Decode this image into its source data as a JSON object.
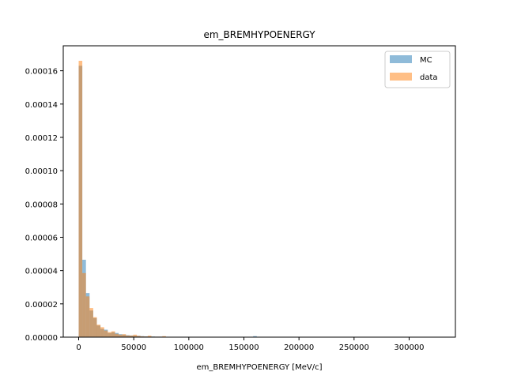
{
  "chart_data": {
    "type": "bar",
    "title": "em_BREMHYPOENERGY",
    "xlabel": "em_BREMHYPOENERGY [MeV/c]",
    "ylabel": "",
    "xlim": [
      -14000,
      342000
    ],
    "ylim": [
      0,
      0.000175
    ],
    "x_ticks": [
      0,
      50000,
      100000,
      150000,
      200000,
      250000,
      300000
    ],
    "x_tick_labels": [
      "0",
      "50000",
      "100000",
      "150000",
      "200000",
      "250000",
      "300000"
    ],
    "y_ticks": [
      0,
      2e-05,
      4e-05,
      6e-05,
      8e-05,
      0.0001,
      0.00012,
      0.00014,
      0.00016
    ],
    "y_tick_labels": [
      "0.00000",
      "0.00002",
      "0.00004",
      "0.00006",
      "0.00008",
      "0.00010",
      "0.00012",
      "0.00014",
      "0.00016"
    ],
    "grid": false,
    "legend_position": "top-right",
    "bin_edges_start": 0,
    "bin_width": 3300,
    "series": [
      {
        "name": "MC",
        "color": "#1f77b4",
        "opacity": 0.5,
        "values": [
          0.000163,
          4.65e-05,
          2.65e-05,
          1.6e-05,
          1.15e-05,
          7e-06,
          5e-06,
          4.5e-06,
          2.5e-06,
          3e-06,
          2.5e-06,
          1.8e-06,
          1.5e-06,
          1.2e-06,
          1e-06,
          9e-07,
          8e-07,
          6e-07,
          5e-07,
          4e-07,
          4e-07,
          3e-07,
          3e-07,
          3e-07,
          2e-07,
          2e-07,
          2e-07,
          2e-07,
          2e-07,
          1e-07,
          1e-07,
          1e-07,
          1e-07,
          1e-07,
          1e-07,
          1e-07,
          1e-07,
          1e-07,
          1e-07,
          1e-07,
          1e-07,
          1e-07,
          1e-07,
          1e-07,
          1e-07,
          1e-07,
          1e-07,
          1e-07,
          6e-07,
          1e-07
        ]
      },
      {
        "name": "data",
        "color": "#ff7f0e",
        "opacity": 0.5,
        "values": [
          0.000166,
          3.85e-05,
          2.45e-05,
          1.75e-05,
          1.2e-05,
          7.5e-06,
          6e-06,
          4e-06,
          3e-06,
          3.5e-06,
          2e-06,
          1.5e-06,
          1.8e-06,
          1e-06,
          1e-06,
          1.5e-06,
          8e-07,
          5e-07,
          4e-07,
          9e-07,
          3e-07,
          3e-07,
          3e-07,
          6e-07,
          2e-07,
          2e-07,
          2e-07,
          2e-07,
          1e-07,
          1e-07,
          1e-07,
          1e-07,
          1e-07,
          1e-07,
          1e-07,
          1e-07,
          1e-07,
          1e-07,
          1e-07,
          1e-07,
          1e-07,
          1e-07,
          1e-07,
          1e-07,
          1e-07,
          1e-07,
          1e-07,
          1e-07,
          1e-07,
          1e-07
        ]
      }
    ]
  }
}
